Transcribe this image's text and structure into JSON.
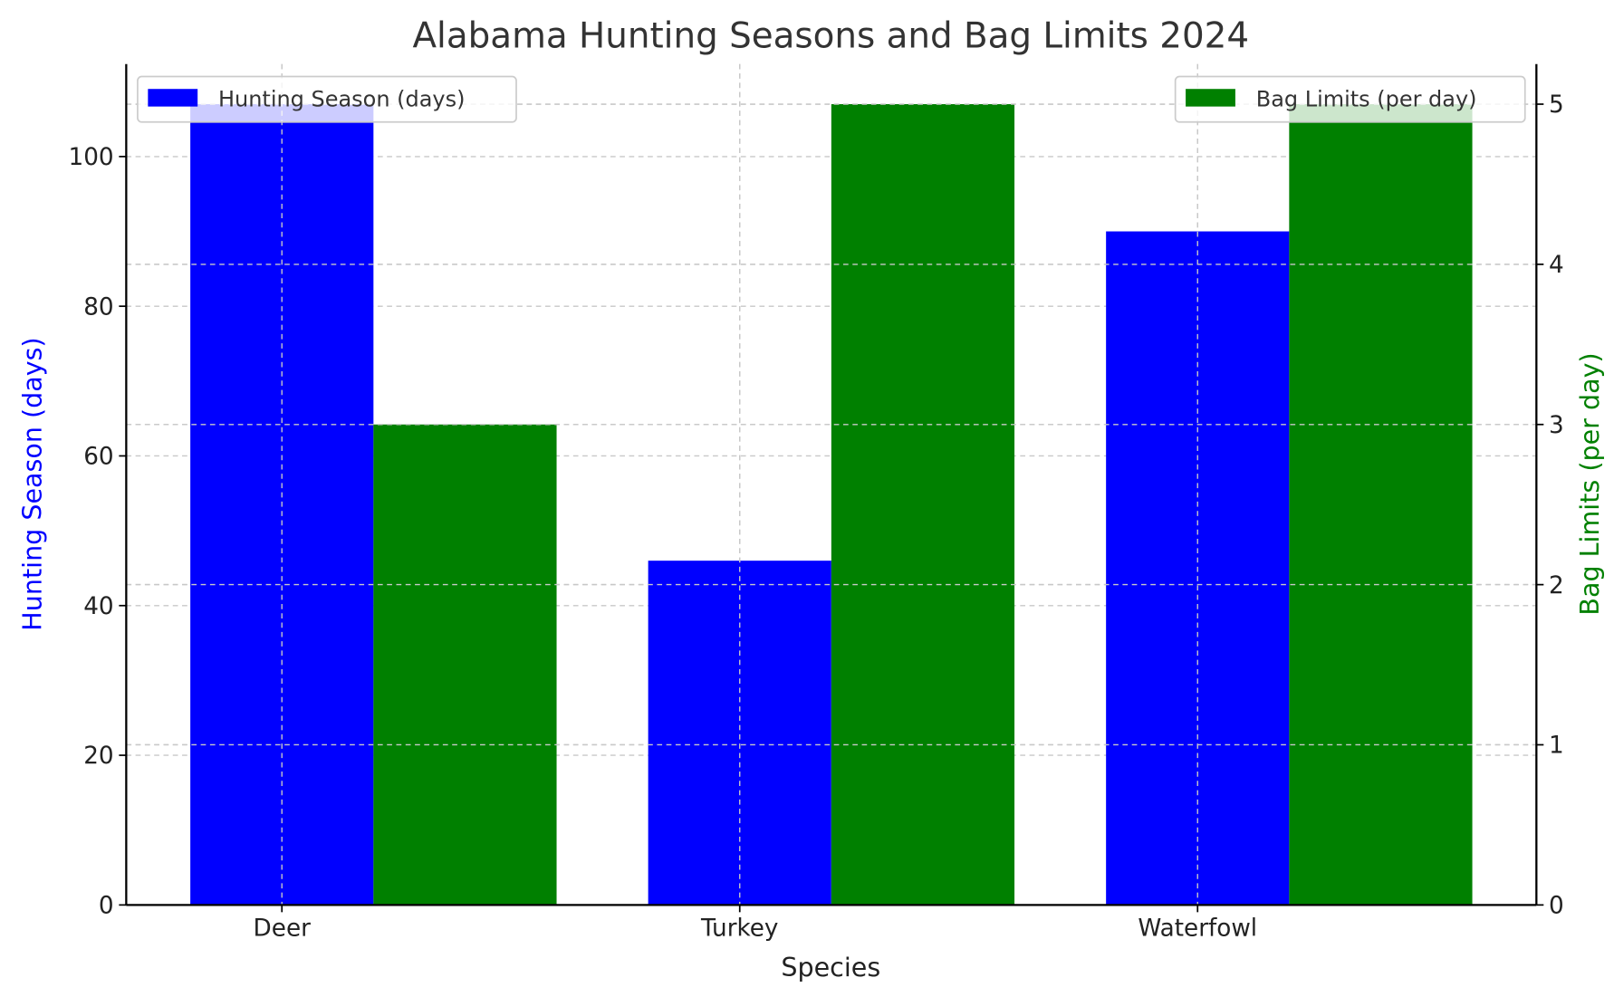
{
  "chart_data": {
    "type": "bar",
    "title": "Alabama Hunting Seasons and Bag Limits 2024",
    "xlabel": "Species",
    "categories": [
      "Deer",
      "Turkey",
      "Waterfowl"
    ],
    "series": [
      {
        "name": "Hunting Season (days)",
        "axis": "left",
        "color": "#0000ff",
        "values": [
          107,
          46,
          90
        ]
      },
      {
        "name": "Bag Limits (per day)",
        "axis": "right",
        "color": "#008000",
        "values": [
          3,
          5,
          5
        ]
      }
    ],
    "left_axis": {
      "label": "Hunting Season (days)",
      "color": "#0000ff",
      "ylim": [
        0,
        112.35
      ],
      "ticks": [
        0,
        20,
        40,
        60,
        80,
        100
      ]
    },
    "right_axis": {
      "label": "Bag Limits (per day)",
      "color": "#008000",
      "ylim": [
        0,
        5.25
      ],
      "ticks": [
        0,
        1,
        2,
        3,
        4,
        5
      ]
    },
    "grid": true,
    "legends": [
      {
        "placement": "top-left",
        "entry": "Hunting Season (days)"
      },
      {
        "placement": "top-right",
        "entry": "Bag Limits (per day)"
      }
    ]
  }
}
